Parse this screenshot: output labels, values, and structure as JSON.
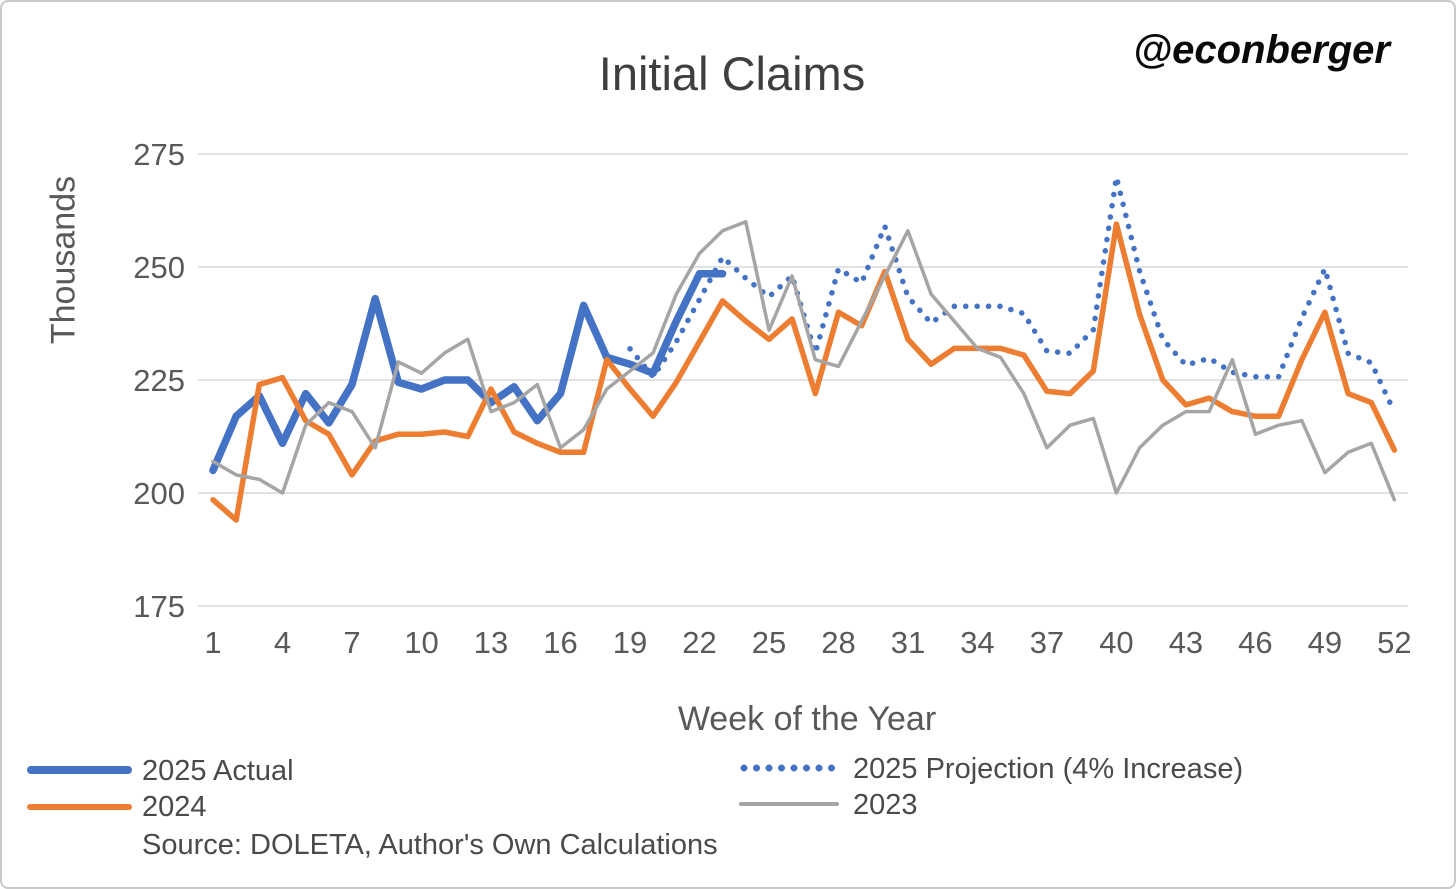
{
  "title": "Initial Claims",
  "watermark": "@econberger",
  "source": "Source: DOLETA, Author's Own Calculations",
  "colors": {
    "blue": "#4472C4",
    "orange": "#ED7D31",
    "gray": "#A5A5A5",
    "grid": "#D9D9D9",
    "axis_text": "#595959",
    "title_text": "#3f3f3f",
    "watermark_text": "#0a0a0a"
  },
  "legend": {
    "items": [
      {
        "label": "2025 Actual",
        "color": "#4472C4",
        "style": "solid-thick"
      },
      {
        "label": "2024",
        "color": "#ED7D31",
        "style": "solid"
      },
      {
        "label": "2025 Projection (4% Increase)",
        "color": "#4472C4",
        "style": "dotted"
      },
      {
        "label": "2023",
        "color": "#A5A5A5",
        "style": "solid-thin"
      }
    ]
  },
  "chart_data": {
    "type": "line",
    "title": "Initial Claims",
    "xlabel": "Week of the Year",
    "ylabel": "Thousands",
    "ylim": [
      175,
      275
    ],
    "y_ticks": [
      175,
      200,
      225,
      250,
      275
    ],
    "x_ticks": [
      1,
      4,
      7,
      10,
      13,
      16,
      19,
      22,
      25,
      28,
      31,
      34,
      37,
      40,
      43,
      46,
      49,
      52
    ],
    "x_range": [
      1,
      52
    ],
    "grid": "horizontal",
    "legend_position": "bottom",
    "series": [
      {
        "name": "2025 Actual",
        "color": "#4472C4",
        "style": "solid",
        "start_week": 1,
        "values": [
          205,
          217,
          221.5,
          211,
          222,
          215.5,
          224,
          243,
          224.5,
          223,
          225,
          225,
          220,
          223.5,
          216,
          222,
          241.5,
          230,
          228.5,
          226.5,
          238,
          248.5,
          248.5
        ]
      },
      {
        "name": "2025 Projection (4% Increase)",
        "color": "#4472C4",
        "style": "dotted",
        "start_week": 19,
        "values": [
          231.9,
          225.7,
          233.5,
          242.8,
          252.2,
          247.5,
          243.4,
          248.0,
          230.9,
          249.6,
          246.5,
          259.0,
          243.4,
          237.6,
          241.3,
          241.3,
          241.3,
          239.7,
          231.4,
          230.9,
          236.1,
          269.9,
          249.1,
          234.0,
          228.3,
          229.8,
          226.7,
          225.7,
          225.7,
          238.7,
          249.6,
          230.9,
          228.8,
          217.9
        ]
      },
      {
        "name": "2024",
        "color": "#ED7D31",
        "style": "solid",
        "start_week": 1,
        "values": [
          198.5,
          194,
          224,
          225.5,
          216,
          213,
          204,
          211.5,
          213,
          213,
          213.5,
          212.5,
          223,
          213.5,
          211,
          209,
          209,
          229.5,
          223,
          217,
          224.5,
          233.5,
          242.5,
          238,
          234,
          238.5,
          222,
          240,
          237,
          249,
          234,
          228.5,
          232,
          232,
          232,
          230.5,
          222.5,
          222,
          227,
          259.5,
          239.5,
          225,
          219.5,
          221,
          218,
          217,
          217,
          229.5,
          240,
          222,
          220,
          209.5
        ]
      },
      {
        "name": "2023",
        "color": "#A5A5A5",
        "style": "solid",
        "start_week": 1,
        "values": [
          207,
          204,
          203,
          200,
          215,
          220,
          218,
          210,
          229,
          226.5,
          231,
          234,
          218,
          220,
          224,
          210,
          214,
          223,
          227,
          231,
          244,
          253,
          258,
          260,
          236,
          248,
          229.5,
          228,
          238,
          248,
          258,
          244,
          238,
          232,
          230,
          222,
          210,
          215,
          216.5,
          200,
          210,
          215,
          218,
          218,
          229.5,
          213,
          215,
          216,
          204.5,
          209,
          211,
          198.5
        ]
      }
    ]
  }
}
